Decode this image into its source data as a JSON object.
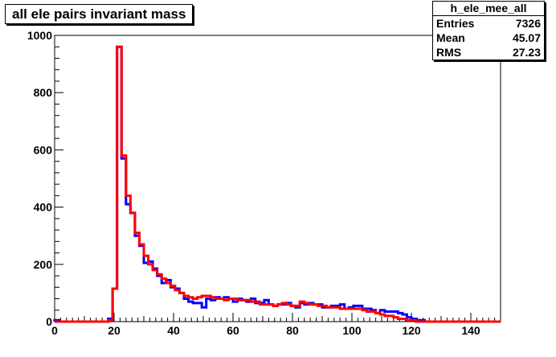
{
  "chart_data": {
    "type": "histogram",
    "title": "all ele pairs invariant mass",
    "stats": {
      "name": "h_ele_mee_all",
      "entries_label": "Entries",
      "entries": "7326",
      "mean_label": "Mean",
      "mean": "45.07",
      "rms_label": "RMS",
      "rms": "27.23"
    },
    "xlim": [
      0,
      150
    ],
    "ylim": [
      0,
      1000
    ],
    "bin_width": 1.5,
    "x_ticks": [
      "0",
      "20",
      "40",
      "60",
      "80",
      "100",
      "120",
      "140"
    ],
    "y_ticks": [
      "0",
      "200",
      "400",
      "600",
      "800",
      "1000"
    ],
    "series": [
      {
        "color": "#0000ff",
        "values": [
          5,
          0,
          0,
          0,
          0,
          0,
          0,
          0,
          0,
          0,
          0,
          0,
          10,
          115,
          960,
          570,
          410,
          380,
          300,
          265,
          205,
          210,
          185,
          160,
          135,
          145,
          120,
          115,
          100,
          80,
          70,
          65,
          65,
          50,
          80,
          75,
          85,
          80,
          85,
          80,
          70,
          80,
          75,
          70,
          80,
          65,
          65,
          75,
          60,
          55,
          60,
          60,
          65,
          55,
          50,
          65,
          60,
          65,
          60,
          60,
          50,
          50,
          55,
          55,
          60,
          45,
          50,
          55,
          55,
          45,
          45,
          40,
          30,
          40,
          35,
          35,
          35,
          30,
          25,
          15,
          10,
          5,
          5,
          0,
          0,
          0,
          0,
          0,
          0,
          0,
          0,
          0,
          0,
          0,
          0,
          0,
          0,
          0,
          0,
          0
        ]
      },
      {
        "color": "#ff0000",
        "values": [
          0,
          0,
          0,
          0,
          0,
          0,
          0,
          0,
          0,
          0,
          0,
          0,
          5,
          115,
          960,
          580,
          440,
          380,
          310,
          270,
          230,
          200,
          180,
          165,
          150,
          135,
          125,
          110,
          100,
          90,
          85,
          80,
          85,
          90,
          90,
          85,
          80,
          80,
          75,
          80,
          80,
          75,
          75,
          75,
          70,
          70,
          60,
          60,
          60,
          55,
          60,
          65,
          60,
          55,
          55,
          70,
          65,
          60,
          60,
          55,
          55,
          50,
          50,
          50,
          45,
          45,
          45,
          45,
          45,
          40,
          35,
          35,
          30,
          25,
          20,
          20,
          15,
          10,
          10,
          5,
          5,
          0,
          0,
          0,
          0,
          0,
          0,
          0,
          0,
          0,
          0,
          0,
          0,
          0,
          0,
          0,
          0,
          0,
          0,
          0
        ]
      }
    ]
  }
}
